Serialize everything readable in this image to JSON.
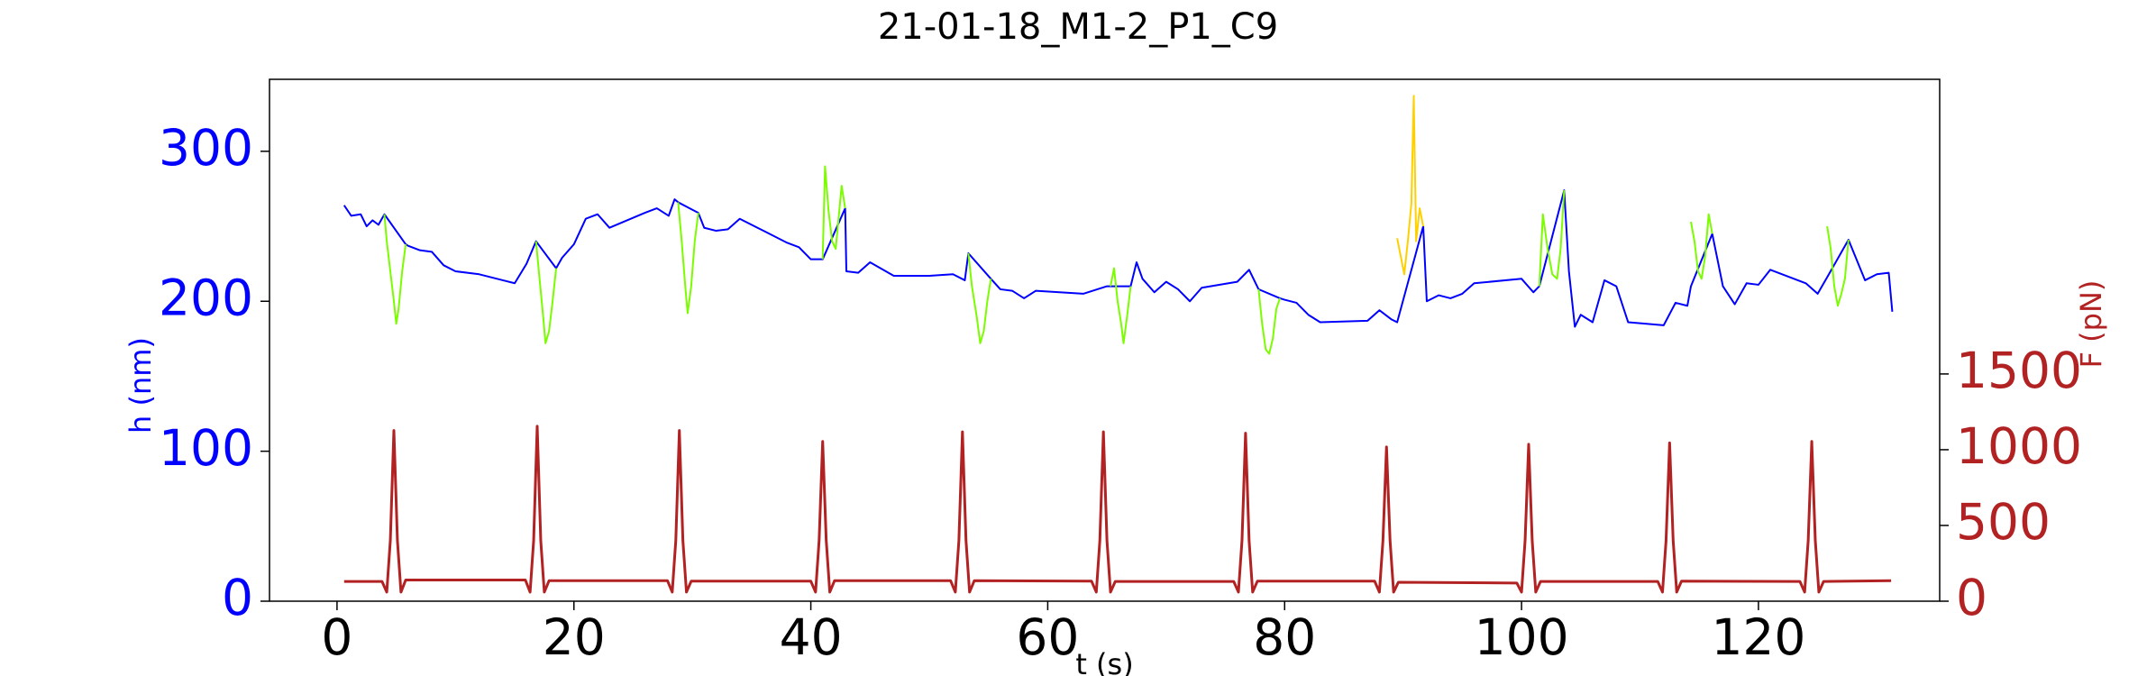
{
  "chart_data": {
    "type": "line",
    "title": "21-01-18_M1-2_P1_C9",
    "xlabel": "t (s)",
    "ylabel": "h (nm)",
    "y2label": "F (pN)",
    "ylabel_color": "#0000ff",
    "y2label_color": "#b22222",
    "xlim": [
      -5.7,
      135.3
    ],
    "xticks": [
      0,
      20,
      40,
      60,
      80,
      100,
      120
    ],
    "ylim": [
      0,
      348
    ],
    "yticks": [
      0,
      100,
      200,
      300
    ],
    "y2lim": [
      0,
      3445
    ],
    "y2ticks": [
      0,
      500,
      1000,
      1500
    ],
    "series": [
      {
        "color": "#0000ff",
        "axis": "y",
        "x": [
          0.6,
          1.2,
          2,
          2.5,
          3,
          3.5,
          4,
          5.8,
          6,
          7,
          8,
          9,
          10,
          12,
          14,
          15,
          16,
          16.8,
          18.5,
          19,
          20,
          21,
          22,
          23,
          26,
          27,
          28,
          28.5,
          28.8,
          30.5,
          31,
          32,
          33,
          34,
          36,
          38,
          39,
          40,
          41,
          42.9,
          43,
          44,
          45,
          47,
          50,
          52,
          53,
          53.3,
          55.2,
          56,
          57,
          58,
          59,
          63,
          65,
          65.3,
          67,
          67.5,
          68,
          69,
          70,
          71,
          72,
          73,
          76,
          77,
          77.8,
          79.6,
          80,
          81,
          82,
          83,
          87,
          88,
          89,
          89.5,
          91.7,
          92,
          93,
          94,
          95,
          96,
          100,
          101,
          101.5,
          103.6,
          104,
          104.5,
          105,
          106,
          107,
          108,
          109,
          112,
          113,
          114,
          114.3,
          116.1,
          117,
          118,
          119,
          120,
          121,
          124,
          125,
          125.8,
          127.6,
          129,
          130,
          131,
          131.3
        ],
        "values": [
          264,
          257,
          258,
          250,
          254,
          251,
          258,
          238,
          237,
          234,
          233,
          224,
          220,
          218,
          214,
          212,
          225,
          240,
          222,
          229,
          238,
          255,
          258,
          249,
          259,
          262,
          257,
          268,
          266,
          259,
          249,
          247,
          248,
          255,
          247,
          239,
          236,
          228,
          228,
          262,
          220,
          219,
          226,
          217,
          217,
          218,
          214,
          232,
          215,
          208,
          207,
          202,
          207,
          205,
          210,
          210,
          210,
          226,
          215,
          206,
          213,
          208,
          200,
          209,
          213,
          221,
          208,
          202,
          201,
          199,
          191,
          186,
          187,
          194,
          188,
          186,
          250,
          200,
          204,
          202,
          205,
          212,
          215,
          206,
          210,
          274,
          220,
          183,
          191,
          186,
          214,
          210,
          186,
          184,
          199,
          197,
          210,
          245,
          210,
          198,
          212,
          211,
          221,
          212,
          205,
          216,
          241,
          214,
          218,
          219,
          193
        ]
      },
      {
        "color": "#7cfc00",
        "axis": "y",
        "x": [
          4.0,
          4.2,
          4.5,
          4.8,
          5.0,
          5.2,
          5.5,
          5.8,
          null,
          16.8,
          17.1,
          17.4,
          17.6,
          17.9,
          18.2,
          18.5,
          null,
          28.8,
          29.1,
          29.4,
          29.6,
          29.9,
          30.2,
          30.5,
          null,
          41,
          41.2,
          41.5,
          41.8,
          42.1,
          42.4,
          42.6,
          42.9,
          null,
          53.3,
          53.6,
          54.0,
          54.3,
          54.6,
          54.9,
          55.2,
          null,
          65.3,
          65.6,
          65.9,
          66.2,
          66.4,
          66.7,
          67,
          null,
          77.8,
          78.1,
          78.4,
          78.7,
          79,
          79.3,
          79.6,
          null,
          101.5,
          101.8,
          102.2,
          102.6,
          103,
          103.3,
          103.6,
          null,
          114.3,
          114.6,
          114.9,
          115.2,
          115.5,
          115.8,
          116.1,
          null,
          125.8,
          126.1,
          126.4,
          126.7,
          127,
          127.3,
          127.6
        ],
        "values": [
          258,
          240,
          220,
          200,
          185,
          195,
          220,
          238,
          null,
          240,
          215,
          190,
          172,
          180,
          200,
          222,
          null,
          266,
          240,
          210,
          192,
          210,
          240,
          259,
          null,
          228,
          290,
          260,
          240,
          235,
          260,
          277,
          262,
          null,
          232,
          210,
          190,
          172,
          180,
          200,
          215,
          null,
          210,
          222,
          200,
          185,
          172,
          190,
          210,
          null,
          208,
          185,
          168,
          165,
          175,
          195,
          202,
          null,
          210,
          258,
          235,
          218,
          215,
          235,
          274,
          null,
          253,
          240,
          220,
          215,
          230,
          258,
          245,
          null,
          250,
          235,
          210,
          197,
          205,
          215,
          241
        ]
      },
      {
        "color": "#ffd000",
        "axis": "y",
        "x": [
          89.5,
          89.8,
          90.1,
          90.4,
          90.7,
          90.9,
          91.1,
          91.4,
          91.7
        ],
        "values": [
          242,
          230,
          218,
          240,
          265,
          337,
          240,
          262,
          250
        ]
      },
      {
        "color": "#b22222",
        "axis": "y2",
        "x": [
          0.6,
          3.8,
          4.2,
          4.5,
          4.8,
          5.1,
          5.4,
          5.8,
          15.9,
          16.3,
          16.6,
          16.9,
          17.2,
          17.5,
          17.9,
          27.9,
          28.3,
          28.6,
          28.9,
          29.2,
          29.5,
          29.9,
          40.0,
          40.4,
          40.7,
          41.0,
          41.3,
          41.6,
          42.0,
          51.8,
          52.2,
          52.5,
          52.8,
          53.1,
          53.4,
          53.8,
          63.7,
          64.1,
          64.4,
          64.7,
          65.0,
          65.3,
          65.7,
          75.7,
          76.1,
          76.4,
          76.7,
          77.0,
          77.3,
          77.7,
          87.6,
          88.0,
          88.3,
          88.6,
          88.9,
          89.2,
          89.6,
          99.6,
          100.0,
          100.3,
          100.6,
          100.9,
          101.2,
          101.6,
          111.5,
          111.9,
          112.2,
          112.5,
          112.8,
          113.1,
          113.5,
          123.5,
          123.9,
          124.2,
          124.5,
          124.8,
          125.1,
          125.5,
          131.2
        ],
        "values": [
          130,
          130,
          60,
          400,
          1127,
          400,
          60,
          140,
          140,
          60,
          400,
          1155,
          400,
          60,
          135,
          135,
          60,
          400,
          1127,
          400,
          60,
          132,
          132,
          60,
          400,
          1055,
          400,
          60,
          135,
          135,
          60,
          400,
          1118,
          400,
          60,
          135,
          132,
          60,
          400,
          1118,
          400,
          60,
          130,
          130,
          60,
          400,
          1109,
          400,
          60,
          132,
          132,
          60,
          400,
          1018,
          400,
          60,
          125,
          120,
          60,
          400,
          1036,
          400,
          60,
          130,
          130,
          60,
          400,
          1045,
          400,
          60,
          132,
          130,
          60,
          400,
          1055,
          400,
          60,
          130,
          135
        ]
      }
    ]
  }
}
